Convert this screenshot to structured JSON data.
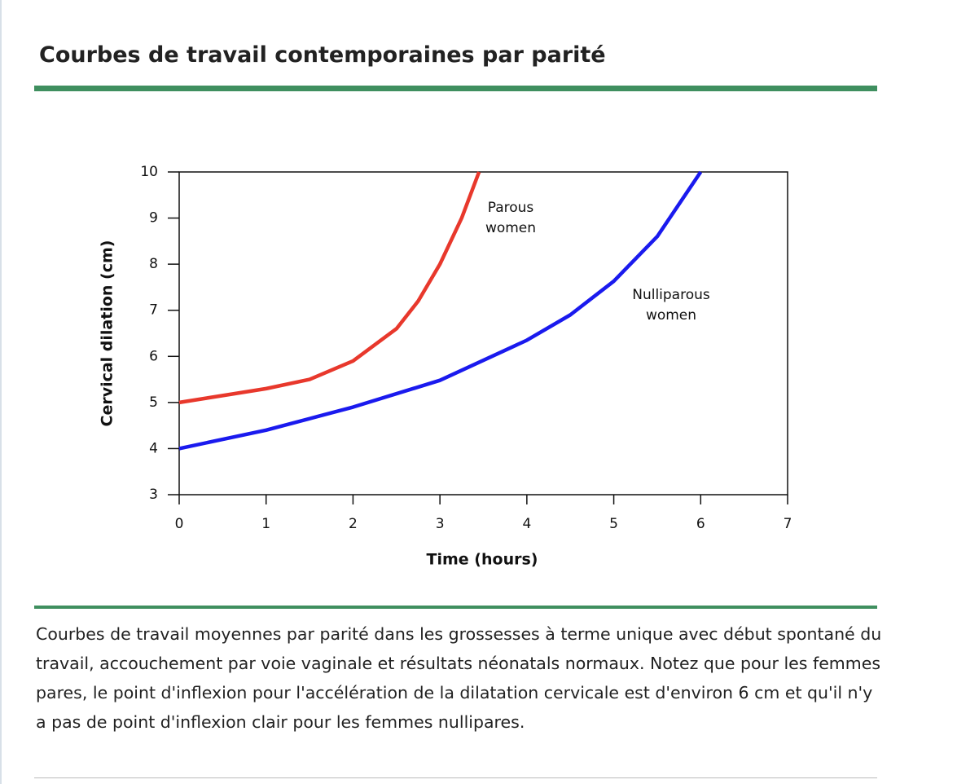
{
  "header": {
    "title": "Courbes de travail contemporaines par parité"
  },
  "chart_data": {
    "type": "line",
    "xlabel": "Time (hours)",
    "ylabel": "Cervical dilation (cm)",
    "xlim": [
      0,
      7
    ],
    "xticks": [
      0,
      1,
      2,
      3,
      4,
      5,
      6,
      7
    ],
    "ylim": [
      3,
      10
    ],
    "yticks": [
      3,
      4,
      5,
      6,
      7,
      8,
      9,
      10
    ],
    "series": [
      {
        "name": "Parous women",
        "color": "#e8382c",
        "x": [
          0,
          0.5,
          1,
          1.5,
          2,
          2.5,
          2.75,
          3,
          3.25,
          3.45
        ],
        "values": [
          5,
          5.15,
          5.3,
          5.5,
          5.9,
          6.6,
          7.2,
          8,
          9,
          10
        ]
      },
      {
        "name": "Nulliparous women",
        "color": "#1a1aee",
        "x": [
          0,
          1,
          2,
          3,
          4,
          4.5,
          5,
          5.5,
          6
        ],
        "values": [
          4,
          4.4,
          4.9,
          5.48,
          6.35,
          6.9,
          7.63,
          8.6,
          10
        ]
      }
    ]
  },
  "caption": "Courbes de travail moyennes par parité dans les grossesses à terme unique avec début spontané du travail, accouchement par voie vaginale et résultats néonatals normaux. Notez que pour les femmes pares, le point d'inflexion pour l'accélération de la dilatation cervicale est d'environ 6 cm et qu'il n'y a pas de point d'inflexion clair pour les femmes nullipares."
}
